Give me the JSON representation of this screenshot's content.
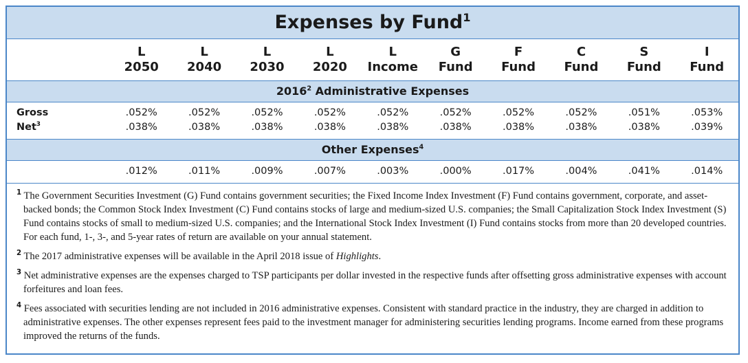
{
  "title": {
    "text": "Expenses by Fund",
    "note": "1"
  },
  "columns": [
    [
      "L",
      "2050"
    ],
    [
      "L",
      "2040"
    ],
    [
      "L",
      "2030"
    ],
    [
      "L",
      "2020"
    ],
    [
      "L",
      "Income"
    ],
    [
      "G",
      "Fund"
    ],
    [
      "F",
      "Fund"
    ],
    [
      "C",
      "Fund"
    ],
    [
      "S",
      "Fund"
    ],
    [
      "I",
      "Fund"
    ]
  ],
  "sections": [
    {
      "heading": {
        "before": "2016",
        "note": "2",
        "after": " Administrative Expenses"
      },
      "rows": [
        {
          "label": "Gross",
          "values": [
            ".052%",
            ".052%",
            ".052%",
            ".052%",
            ".052%",
            ".052%",
            ".052%",
            ".052%",
            ".051%",
            ".053%"
          ]
        },
        {
          "label": "Net",
          "note": "3",
          "values": [
            ".038%",
            ".038%",
            ".038%",
            ".038%",
            ".038%",
            ".038%",
            ".038%",
            ".038%",
            ".038%",
            ".039%"
          ]
        }
      ]
    },
    {
      "heading": {
        "before": "Other Expenses",
        "note": "4"
      },
      "rows": [
        {
          "values": [
            ".012%",
            ".011%",
            ".009%",
            ".007%",
            ".003%",
            ".000%",
            ".017%",
            ".004%",
            ".041%",
            ".014%"
          ]
        }
      ]
    }
  ],
  "footnotes": [
    {
      "number": "1",
      "parts": [
        {
          "text": "The Government Securities Investment (G) Fund contains government securities; the Fixed Income Index Investment (F) Fund contains government, corporate, and asset-backed bonds; the Common Stock Index Investment (C) Fund contains stocks of large and medium-sized U.S. companies; the Small Capitalization Stock Index Investment (S) Fund contains stocks of small to medium-sized U.S. companies; and the International Stock Index Investment (I) Fund contains stocks from more than 20 developed countries. For each fund, 1-, 3-, and 5-year rates of return are available on your annual statement."
        }
      ]
    },
    {
      "number": "2",
      "parts": [
        {
          "text": "The 2017 administrative expenses will be available in the April 2018 issue of "
        },
        {
          "text": "Highlights",
          "italic": true
        },
        {
          "text": "."
        }
      ]
    },
    {
      "number": "3",
      "parts": [
        {
          "text": "Net administrative expenses are the expenses charged to TSP participants per dollar invested in the respective funds after offsetting gross administrative expenses with account forfeitures and loan fees."
        }
      ]
    },
    {
      "number": "4",
      "parts": [
        {
          "text": "Fees associated with securities lending are not included in 2016 administrative expenses. Consistent with standard practice in the industry, they are charged in addition to administrative expenses. The other expenses represent fees paid to the investment manager for administering securities lending programs. Income earned from these programs improved the returns of the funds."
        }
      ]
    }
  ]
}
